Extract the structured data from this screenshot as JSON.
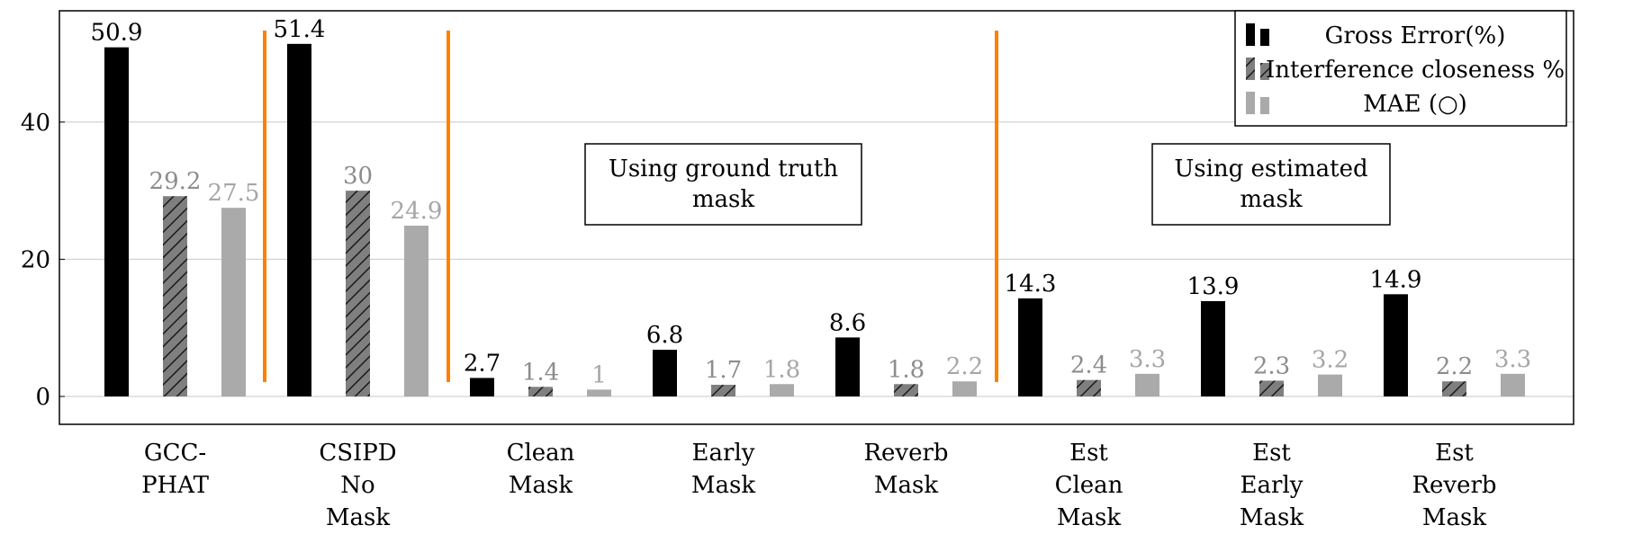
{
  "chart_data": {
    "type": "bar",
    "categories": [
      [
        "GCC-",
        "PHAT"
      ],
      [
        "CSIPD",
        "No",
        "Mask"
      ],
      [
        "Clean",
        "Mask"
      ],
      [
        "Early",
        "Mask"
      ],
      [
        "Reverb",
        "Mask"
      ],
      [
        "Est",
        "Clean",
        "Mask"
      ],
      [
        "Est",
        "Early",
        "Mask"
      ],
      [
        "Est",
        "Reverb",
        "Mask"
      ]
    ],
    "series": [
      {
        "name": "Gross Error(%)",
        "values": [
          50.9,
          51.4,
          2.7,
          6.8,
          8.6,
          14.3,
          13.9,
          14.9
        ],
        "labels": [
          "50.9",
          "51.4",
          "2.7",
          "6.8",
          "8.6",
          "14.3",
          "13.9",
          "14.9"
        ]
      },
      {
        "name": "Interference closeness %",
        "values": [
          29.2,
          30,
          1.4,
          1.7,
          1.8,
          2.4,
          2.3,
          2.2
        ],
        "labels": [
          "29.2",
          "30",
          "1.4",
          "1.7",
          "1.8",
          "2.4",
          "2.3",
          "2.2"
        ]
      },
      {
        "name": "MAE (○)",
        "values": [
          27.5,
          24.9,
          1,
          1.8,
          2.2,
          3.3,
          3.2,
          3.3
        ],
        "labels": [
          "27.5",
          "24.9",
          "1",
          "1.8",
          "2.2",
          "3.3",
          "3.2",
          "3.3"
        ]
      }
    ],
    "yticks": [
      0,
      20,
      40
    ],
    "ylim": [
      -4,
      56.5
    ],
    "grid": true,
    "legend_position": "top-right",
    "annotations": [
      {
        "lines": [
          "Using ground truth",
          "mask"
        ]
      },
      {
        "lines": [
          "Using estimated",
          "mask"
        ]
      }
    ],
    "colors": {
      "series": [
        "#000000",
        "#7f7f7f",
        "#aaaaaa"
      ],
      "hatch": "#1a1a1a",
      "label_colors": [
        "#000000",
        "#8c8c8c",
        "#a6a6a6"
      ],
      "divider": "#ff8000",
      "grid": "#c8c8c8"
    }
  }
}
